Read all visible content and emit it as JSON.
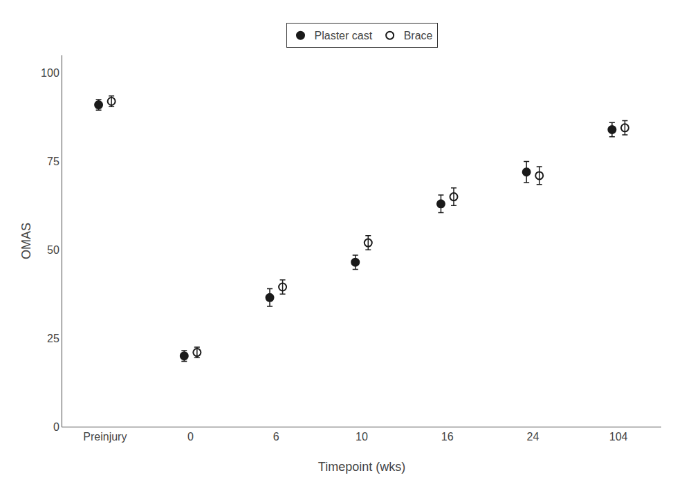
{
  "chart_data": {
    "type": "scatter",
    "xlabel": "Timepoint (wks)",
    "ylabel": "OMAS",
    "categories": [
      "Preinjury",
      "0",
      "6",
      "10",
      "16",
      "24",
      "104"
    ],
    "series": [
      {
        "name": "Plaster cast",
        "color": "#1a1a1a",
        "marker": "circle",
        "values": [
          91.0,
          20.0,
          36.5,
          46.5,
          63.0,
          72.0,
          84.0
        ],
        "error_low": [
          1.5,
          1.5,
          2.5,
          2.0,
          2.5,
          3.0,
          2.0
        ],
        "error_high": [
          1.5,
          1.5,
          2.5,
          2.0,
          2.5,
          3.0,
          2.0
        ]
      },
      {
        "name": "Brace",
        "color": "#1a1a1a",
        "marker": "circle-open",
        "values": [
          92.0,
          21.0,
          39.5,
          52.0,
          65.0,
          71.0,
          84.5
        ],
        "error_low": [
          1.5,
          1.5,
          2.0,
          2.0,
          2.5,
          2.5,
          2.0
        ],
        "error_high": [
          1.5,
          1.5,
          2.0,
          2.0,
          2.5,
          2.5,
          2.0
        ]
      }
    ],
    "ylim": [
      0,
      105
    ],
    "yticks": [
      0,
      25,
      50,
      75,
      100
    ],
    "grid": false,
    "legend": "top"
  }
}
